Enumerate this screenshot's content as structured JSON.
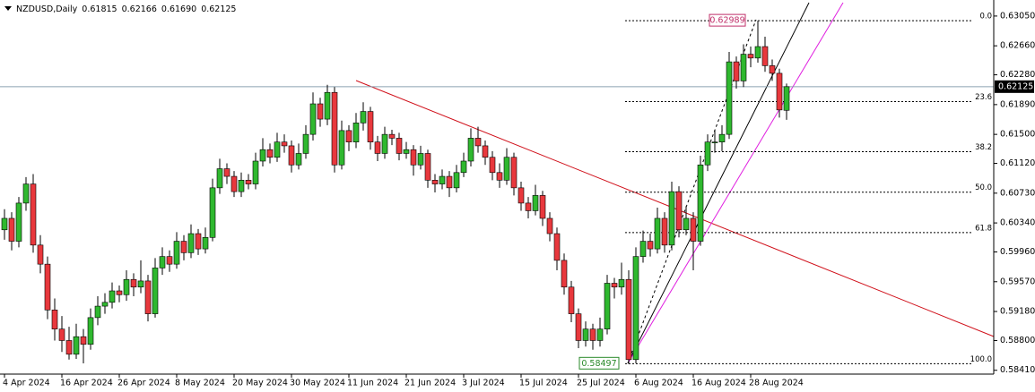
{
  "chart_data": {
    "type": "candlestick",
    "title": "NZDUSD,Daily",
    "header_ohlc": [
      {
        "value": 0.61815,
        "label": "0.61815"
      },
      {
        "value": 0.62166,
        "label": "0.62166"
      },
      {
        "value": 0.6169,
        "label": "0.61690"
      },
      {
        "value": 0.62125,
        "label": "0.62125"
      }
    ],
    "colors": {
      "up": "#2fb82f",
      "down": "#e8383d",
      "wick": "#000000"
    },
    "ylim": [
      0.5836,
      0.6326
    ],
    "yticks": [
      {
        "value": 0.6305,
        "label": "0.63050"
      },
      {
        "value": 0.6266,
        "label": "0.62660"
      },
      {
        "value": 0.6228,
        "label": "0.62280"
      },
      {
        "value": 0.6189,
        "label": "0.61890"
      },
      {
        "value": 0.615,
        "label": "0.61500"
      },
      {
        "value": 0.6112,
        "label": "0.61120"
      },
      {
        "value": 0.6073,
        "label": "0.60730"
      },
      {
        "value": 0.6034,
        "label": "0.60340"
      },
      {
        "value": 0.5996,
        "label": "0.59960"
      },
      {
        "value": 0.5957,
        "label": "0.59570"
      },
      {
        "value": 0.5918,
        "label": "0.59180"
      },
      {
        "value": 0.588,
        "label": "0.58800"
      },
      {
        "value": 0.5841,
        "label": "0.58410"
      }
    ],
    "current_price": {
      "value": 0.62125,
      "label": "0.62125"
    },
    "fib": {
      "levels": [
        {
          "value": 0.62989,
          "label": "0.0"
        },
        {
          "value": 0.61929,
          "label": "23.6"
        },
        {
          "value": 0.61273,
          "label": "38.2"
        },
        {
          "value": 0.60743,
          "label": "50.0"
        },
        {
          "value": 0.60213,
          "label": "61.8"
        },
        {
          "value": 0.58497,
          "label": "100.0"
        }
      ],
      "high_price": {
        "value": 0.62989,
        "label": "0.62989"
      },
      "low_price": {
        "value": 0.58497,
        "label": "0.58497"
      }
    },
    "categories": [
      "4 Apr 2024",
      null,
      null,
      null,
      null,
      null,
      null,
      null,
      "16 Apr 2024",
      null,
      null,
      null,
      null,
      null,
      null,
      null,
      "26 Apr 2024",
      null,
      null,
      null,
      null,
      null,
      null,
      null,
      "8 May 2024",
      null,
      null,
      null,
      null,
      null,
      null,
      null,
      "20 May 2024",
      null,
      null,
      null,
      null,
      null,
      null,
      null,
      "30 May 2024",
      null,
      null,
      null,
      null,
      null,
      null,
      null,
      "11 Jun 2024",
      null,
      null,
      null,
      null,
      null,
      null,
      null,
      "21 Jun 2024",
      null,
      null,
      null,
      null,
      null,
      null,
      null,
      "3 Jul 2024",
      null,
      null,
      null,
      null,
      null,
      null,
      null,
      "15 Jul 2024",
      null,
      null,
      null,
      null,
      null,
      null,
      null,
      "25 Jul 2024",
      null,
      null,
      null,
      null,
      null,
      null,
      null,
      "6 Aug 2024",
      null,
      null,
      null,
      null,
      null,
      null,
      null,
      "16 Aug 2024",
      null,
      null,
      null,
      null,
      null,
      null,
      null,
      "28 Aug 2024",
      null,
      null,
      null,
      null,
      null
    ],
    "ohlc": [
      [
        0.6025,
        0.6052,
        0.6012,
        0.604
      ],
      [
        0.604,
        0.6048,
        0.5998,
        0.601
      ],
      [
        0.601,
        0.6068,
        0.6002,
        0.606
      ],
      [
        0.606,
        0.6094,
        0.605,
        0.6085
      ],
      [
        0.6085,
        0.6098,
        0.5995,
        0.6005
      ],
      [
        0.6005,
        0.6018,
        0.5968,
        0.598
      ],
      [
        0.598,
        0.599,
        0.5908,
        0.592
      ],
      [
        0.592,
        0.5935,
        0.588,
        0.5895
      ],
      [
        0.5895,
        0.5912,
        0.5865,
        0.588
      ],
      [
        0.588,
        0.5898,
        0.5855,
        0.5862
      ],
      [
        0.5862,
        0.5902,
        0.5856,
        0.5885
      ],
      [
        0.5885,
        0.5895,
        0.585,
        0.5875
      ],
      [
        0.5875,
        0.5922,
        0.5868,
        0.591
      ],
      [
        0.591,
        0.5938,
        0.59,
        0.5925
      ],
      [
        0.5925,
        0.5942,
        0.5915,
        0.593
      ],
      [
        0.593,
        0.5956,
        0.5922,
        0.5945
      ],
      [
        0.5945,
        0.5952,
        0.593,
        0.594
      ],
      [
        0.594,
        0.5972,
        0.5932,
        0.596
      ],
      [
        0.596,
        0.5968,
        0.5938,
        0.595
      ],
      [
        0.595,
        0.5985,
        0.5942,
        0.5958
      ],
      [
        0.5958,
        0.5966,
        0.5905,
        0.5915
      ],
      [
        0.5915,
        0.5988,
        0.591,
        0.5975
      ],
      [
        0.5975,
        0.6002,
        0.5966,
        0.599
      ],
      [
        0.599,
        0.5998,
        0.597,
        0.598
      ],
      [
        0.598,
        0.6022,
        0.5974,
        0.601
      ],
      [
        0.601,
        0.6018,
        0.5985,
        0.5995
      ],
      [
        0.5995,
        0.6032,
        0.5988,
        0.602
      ],
      [
        0.602,
        0.6026,
        0.5992,
        0.6
      ],
      [
        0.6,
        0.6028,
        0.5994,
        0.6015
      ],
      [
        0.6015,
        0.6092,
        0.601,
        0.608
      ],
      [
        0.608,
        0.6118,
        0.6072,
        0.6105
      ],
      [
        0.6105,
        0.6112,
        0.6085,
        0.6095
      ],
      [
        0.6095,
        0.6102,
        0.6068,
        0.6075
      ],
      [
        0.6075,
        0.61,
        0.6068,
        0.609
      ],
      [
        0.609,
        0.6098,
        0.6078,
        0.6085
      ],
      [
        0.6085,
        0.6126,
        0.6078,
        0.6115
      ],
      [
        0.6115,
        0.6145,
        0.6108,
        0.613
      ],
      [
        0.613,
        0.6138,
        0.6112,
        0.612
      ],
      [
        0.612,
        0.6152,
        0.6114,
        0.614
      ],
      [
        0.614,
        0.615,
        0.6126,
        0.6135
      ],
      [
        0.6135,
        0.6142,
        0.61,
        0.611
      ],
      [
        0.611,
        0.6138,
        0.6104,
        0.6125
      ],
      [
        0.6125,
        0.6162,
        0.6118,
        0.615
      ],
      [
        0.615,
        0.6205,
        0.6142,
        0.619
      ],
      [
        0.619,
        0.6198,
        0.616,
        0.617
      ],
      [
        0.617,
        0.6215,
        0.6162,
        0.6205
      ],
      [
        0.6205,
        0.6212,
        0.61,
        0.611
      ],
      [
        0.611,
        0.6168,
        0.6104,
        0.6155
      ],
      [
        0.6155,
        0.6162,
        0.6128,
        0.614
      ],
      [
        0.614,
        0.6178,
        0.6132,
        0.6165
      ],
      [
        0.6165,
        0.6192,
        0.6155,
        0.618
      ],
      [
        0.618,
        0.6186,
        0.613,
        0.614
      ],
      [
        0.614,
        0.6148,
        0.6115,
        0.6125
      ],
      [
        0.6125,
        0.616,
        0.6118,
        0.615
      ],
      [
        0.615,
        0.6156,
        0.6136,
        0.6145
      ],
      [
        0.6145,
        0.6152,
        0.6116,
        0.6125
      ],
      [
        0.6125,
        0.614,
        0.6118,
        0.613
      ],
      [
        0.613,
        0.6136,
        0.6096,
        0.611
      ],
      [
        0.611,
        0.6135,
        0.6104,
        0.6125
      ],
      [
        0.6125,
        0.613,
        0.608,
        0.609
      ],
      [
        0.609,
        0.6098,
        0.6074,
        0.6085
      ],
      [
        0.6085,
        0.6104,
        0.6078,
        0.6095
      ],
      [
        0.6095,
        0.6102,
        0.6068,
        0.608
      ],
      [
        0.608,
        0.611,
        0.6074,
        0.61
      ],
      [
        0.61,
        0.6126,
        0.6094,
        0.6115
      ],
      [
        0.6115,
        0.6158,
        0.6108,
        0.6145
      ],
      [
        0.6145,
        0.616,
        0.6126,
        0.6135
      ],
      [
        0.6135,
        0.6142,
        0.611,
        0.612
      ],
      [
        0.612,
        0.6128,
        0.609,
        0.61
      ],
      [
        0.61,
        0.6112,
        0.608,
        0.609
      ],
      [
        0.609,
        0.6132,
        0.6084,
        0.612
      ],
      [
        0.612,
        0.6126,
        0.607,
        0.608
      ],
      [
        0.608,
        0.6088,
        0.605,
        0.606
      ],
      [
        0.606,
        0.6068,
        0.604,
        0.605
      ],
      [
        0.605,
        0.6084,
        0.6044,
        0.607
      ],
      [
        0.607,
        0.6076,
        0.603,
        0.604
      ],
      [
        0.604,
        0.6048,
        0.601,
        0.602
      ],
      [
        0.602,
        0.6028,
        0.5972,
        0.5985
      ],
      [
        0.5985,
        0.5994,
        0.594,
        0.595
      ],
      [
        0.595,
        0.5958,
        0.5904,
        0.5915
      ],
      [
        0.5915,
        0.5922,
        0.587,
        0.588
      ],
      [
        0.588,
        0.5905,
        0.5872,
        0.5895
      ],
      [
        0.5895,
        0.5902,
        0.5868,
        0.588
      ],
      [
        0.588,
        0.591,
        0.5872,
        0.5895
      ],
      [
        0.5895,
        0.5966,
        0.5888,
        0.5955
      ],
      [
        0.5955,
        0.5962,
        0.5935,
        0.595
      ],
      [
        0.595,
        0.5982,
        0.594,
        0.596
      ],
      [
        0.596,
        0.5972,
        0.58497,
        0.5855
      ],
      [
        0.5855,
        0.6002,
        0.585,
        0.599
      ],
      [
        0.599,
        0.6024,
        0.5982,
        0.601
      ],
      [
        0.601,
        0.602,
        0.599,
        0.6
      ],
      [
        0.6,
        0.6054,
        0.5994,
        0.604
      ],
      [
        0.604,
        0.6048,
        0.5995,
        0.6005
      ],
      [
        0.6005,
        0.6088,
        0.5998,
        0.6075
      ],
      [
        0.6075,
        0.6082,
        0.6015,
        0.6025
      ],
      [
        0.6025,
        0.6056,
        0.6018,
        0.604
      ],
      [
        0.604,
        0.6048,
        0.5972,
        0.601
      ],
      [
        0.601,
        0.6122,
        0.6004,
        0.611
      ],
      [
        0.611,
        0.615,
        0.6102,
        0.614
      ],
      [
        0.614,
        0.6156,
        0.6126,
        0.614
      ],
      [
        0.614,
        0.6162,
        0.6128,
        0.615
      ],
      [
        0.615,
        0.6258,
        0.6144,
        0.6245
      ],
      [
        0.6245,
        0.6252,
        0.621,
        0.622
      ],
      [
        0.622,
        0.6268,
        0.6212,
        0.6255
      ],
      [
        0.6255,
        0.6265,
        0.6238,
        0.625
      ],
      [
        0.625,
        0.62989,
        0.6244,
        0.6265
      ],
      [
        0.6265,
        0.6278,
        0.6232,
        0.624
      ],
      [
        0.624,
        0.6248,
        0.622,
        0.623
      ],
      [
        0.623,
        0.6236,
        0.6172,
        0.6182
      ],
      [
        0.61815,
        0.62166,
        0.6169,
        0.62125
      ]
    ]
  }
}
